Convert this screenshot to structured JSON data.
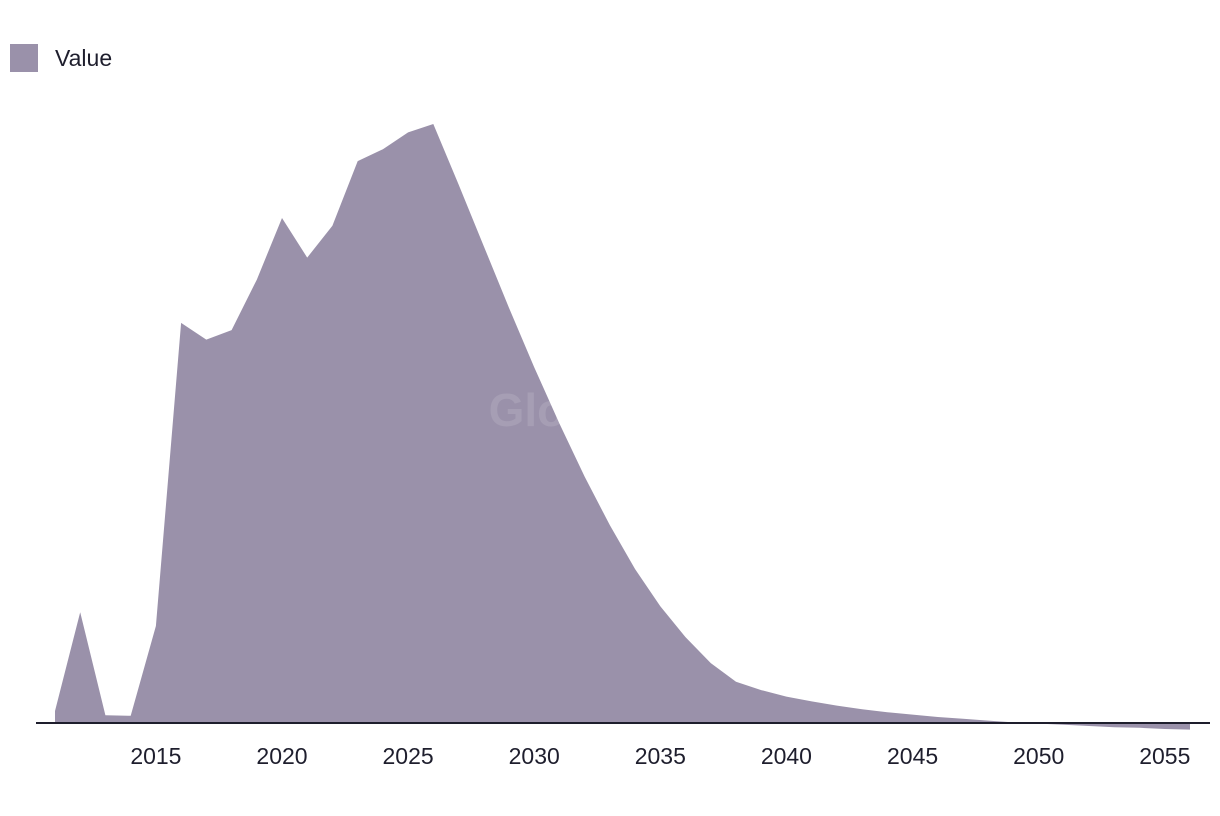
{
  "legend": {
    "label": "Value"
  },
  "watermark": "GlobalData",
  "colors": {
    "series": "#9a91aa",
    "axis": "#1e1e2d"
  },
  "chart_data": {
    "type": "area",
    "title": "",
    "xlabel": "",
    "ylabel": "",
    "grid": false,
    "legend_position": "top-left",
    "y_axis_labels": false,
    "xlim": [
      2010.2,
      2056.8
    ],
    "ylim": [
      0,
      100
    ],
    "xticks": [
      2015,
      2020,
      2025,
      2030,
      2035,
      2040,
      2045,
      2050,
      2055
    ],
    "series": [
      {
        "name": "Value",
        "x": [
          2011,
          2012,
          2013,
          2014,
          2015,
          2016,
          2017,
          2018,
          2019,
          2020,
          2021,
          2022,
          2023,
          2024,
          2025,
          2026,
          2027,
          2028,
          2029,
          2030,
          2031,
          2032,
          2033,
          2034,
          2035,
          2036,
          2037,
          2038,
          2039,
          2040,
          2041,
          2042,
          2043,
          2044,
          2045,
          2046,
          2047,
          2048,
          2049,
          2050,
          2051,
          2052,
          2053,
          2054,
          2055,
          2056
        ],
        "values": [
          2.0,
          18.5,
          1.3,
          1.2,
          16.2,
          66.8,
          64.0,
          65.6,
          74.0,
          84.3,
          77.7,
          83.0,
          93.8,
          95.8,
          98.6,
          100.0,
          89.9,
          79.6,
          69.3,
          59.4,
          50.0,
          41.1,
          33.0,
          25.7,
          19.5,
          14.3,
          10.0,
          6.9,
          5.5,
          4.4,
          3.6,
          2.9,
          2.3,
          1.8,
          1.4,
          1.0,
          0.7,
          0.4,
          0.1,
          -0.1,
          -0.3,
          -0.5,
          -0.7,
          -0.8,
          -1.0,
          -1.1
        ]
      }
    ]
  }
}
